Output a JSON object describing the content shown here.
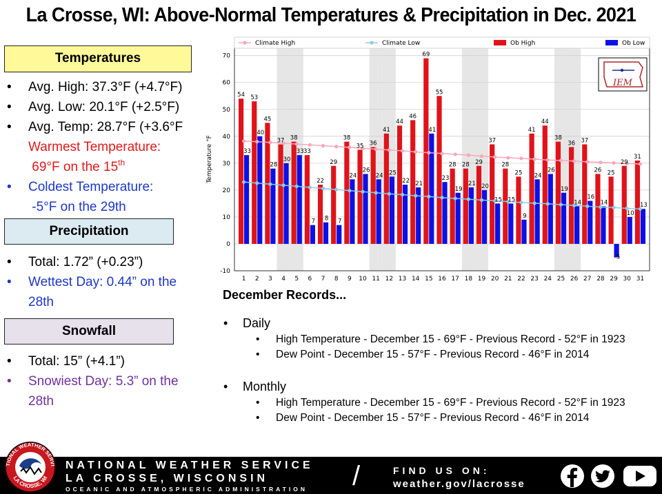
{
  "title": "La Crosse, WI:  Above-Normal Temperatures & Precipitation in Dec. 2021",
  "temperatures": {
    "heading": "Temperatures",
    "avg_high": "Avg. High:  37.3°F (+4.7°F)",
    "avg_low": "Avg. Low:  20.1°F (+2.5°F)",
    "avg_temp": "Avg. Temp:  28.7°F (+3.6°F",
    "warmest_label": "Warmest Temperature:",
    "warmest_value": "69°F on the 15",
    "warmest_suffix": "th",
    "coldest_label": "Coldest Temperature:",
    "coldest_value": "-5°F on the 29th"
  },
  "precipitation": {
    "heading": "Precipitation",
    "total": "Total:  1.72” (+0.23”)",
    "wettest": "Wettest Day: 0.44” on the 28th"
  },
  "snowfall": {
    "heading": "Snowfall",
    "total": "Total:  15” (+4.1”)",
    "snowiest": "Snowiest Day: 5.3” on the 28th"
  },
  "records": {
    "heading": "December Records...",
    "daily_label": "Daily",
    "daily": [
      "High Temperature - December 15 - 69°F - Previous Record - 52°F in 1923",
      "Dew Point - December 15 - 57°F - Previous Record - 46°F in 2014"
    ],
    "monthly_label": "Monthly",
    "monthly": [
      "High Temperature - December 15 - 69°F - Previous Record - 52°F in 1923",
      "Dew Point - December 15 - 57°F - Previous Record - 46°F in 2014"
    ]
  },
  "footer": {
    "line1": "NATIONAL WEATHER SERVICE",
    "line2": "LA CROSSE, WISCONSIN",
    "line3": "OCEANIC AND ATMOSPHERIC ADMINISTRATION",
    "find_us": "FIND US ON:",
    "url": "weather.gov/lacrosse",
    "seal_text_top": "NATIONAL WEATHER SERVICE",
    "seal_text_bottom": "LA CROSSE, WI"
  },
  "chart_data": {
    "type": "bar",
    "ylabel": "Temperature °F",
    "ylim": [
      -10,
      73
    ],
    "yticks": [
      -10,
      0,
      10,
      20,
      30,
      40,
      50,
      60,
      70
    ],
    "categories": [
      "1",
      "2",
      "3",
      "4",
      "5",
      "6",
      "7",
      "8",
      "9",
      "10",
      "11",
      "12",
      "13",
      "14",
      "15",
      "16",
      "17",
      "18",
      "19",
      "20",
      "21",
      "22",
      "23",
      "24",
      "25",
      "26",
      "27",
      "28",
      "29",
      "30",
      "31"
    ],
    "shaded_categories": [
      "4",
      "5",
      "11",
      "12",
      "18",
      "19",
      "25",
      "26"
    ],
    "grid": true,
    "legend_position": "top",
    "logo_text": "IEM",
    "colors": {
      "ob_high": "#e0131a",
      "ob_low": "#0d10e6",
      "climate_high": "#f6a8bc",
      "climate_low": "#8ecbe6",
      "shade": "#e6e6e6"
    },
    "series": [
      {
        "name": "Ob High",
        "kind": "bar",
        "values": [
          54,
          53,
          45,
          37,
          38,
          33,
          22,
          29,
          38,
          35,
          36,
          41,
          44,
          46,
          69,
          55,
          28,
          28,
          29,
          37,
          28,
          25,
          41,
          44,
          38,
          36,
          37,
          26,
          25,
          29,
          31
        ]
      },
      {
        "name": "Ob Low",
        "kind": "bar",
        "values": [
          33,
          40,
          28,
          30,
          33,
          7,
          8,
          7,
          24,
          26,
          24,
          25,
          22,
          21,
          41,
          23,
          19,
          21,
          20,
          15,
          15,
          9,
          24,
          26,
          19,
          14,
          16,
          14,
          -5,
          10,
          13
        ]
      },
      {
        "name": "Climate High",
        "kind": "line",
        "values": [
          38.2,
          38.0,
          37.7,
          37.4,
          37.1,
          36.8,
          36.5,
          36.2,
          35.9,
          35.5,
          35.2,
          34.9,
          34.6,
          34.2,
          33.9,
          33.6,
          33.3,
          33.0,
          32.6,
          32.3,
          32.0,
          31.8,
          31.5,
          31.2,
          31.0,
          30.8,
          30.5,
          30.3,
          30.1,
          29.9,
          29.7
        ]
      },
      {
        "name": "Climate Low",
        "kind": "line",
        "values": [
          23.0,
          22.6,
          22.2,
          21.8,
          21.4,
          21.0,
          20.6,
          20.2,
          19.8,
          19.4,
          19.0,
          18.6,
          18.3,
          17.9,
          17.6,
          17.2,
          16.9,
          16.6,
          16.3,
          16.0,
          15.7,
          15.4,
          15.1,
          14.9,
          14.6,
          14.3,
          14.0,
          13.7,
          13.5,
          13.2,
          13.0
        ]
      }
    ]
  }
}
